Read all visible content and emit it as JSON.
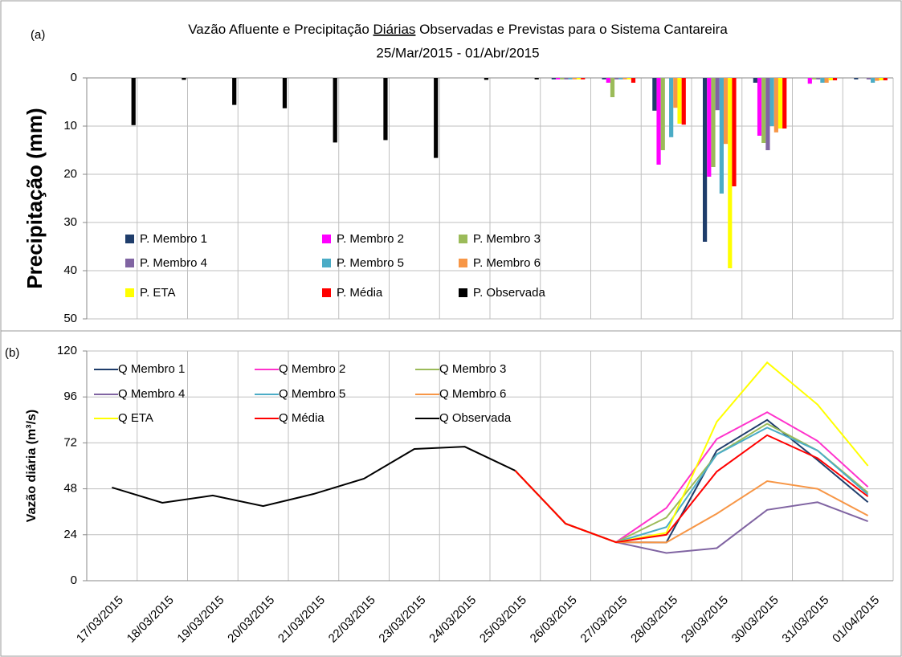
{
  "chart_data": [
    {
      "type": "bar",
      "title": [
        "Vazão Afluente e Precipitação",
        "Diárias",
        "Observadas e Previstas para o Sistema Cantareira"
      ],
      "subtitle": "25/Mar/2015 - 01/Abr/2015",
      "panel_label": "(a)",
      "y_label": "Precipitação (mm)",
      "ylim": [
        0,
        50
      ],
      "yticks": [
        0,
        10,
        20,
        30,
        40,
        50
      ],
      "y_inverted": true,
      "grid": true,
      "series": [
        {
          "name": "P. Membro 1",
          "color": "#1f3d6b",
          "values": [
            null,
            null,
            null,
            null,
            null,
            null,
            null,
            null,
            null,
            0.3,
            0.3,
            6.8,
            34,
            1,
            0,
            0.3
          ]
        },
        {
          "name": "P. Membro 2",
          "color": "#ff00ff",
          "values": [
            null,
            null,
            null,
            null,
            null,
            null,
            null,
            null,
            null,
            0.3,
            1,
            18,
            20.5,
            12,
            1.2,
            0
          ]
        },
        {
          "name": "P. Membro 3",
          "color": "#9bbb59",
          "values": [
            null,
            null,
            null,
            null,
            null,
            null,
            null,
            null,
            null,
            0.3,
            4,
            15,
            18.5,
            13.5,
            0.3,
            0
          ]
        },
        {
          "name": "P. Membro 4",
          "color": "#8064a2",
          "values": [
            null,
            null,
            null,
            null,
            null,
            null,
            null,
            null,
            null,
            0.3,
            0.3,
            0,
            6.7,
            15,
            0.3,
            0.3
          ]
        },
        {
          "name": "P. Membro 5",
          "color": "#4bacc6",
          "values": [
            null,
            null,
            null,
            null,
            null,
            null,
            null,
            null,
            null,
            0.3,
            0.3,
            12.3,
            24,
            10,
            1,
            1
          ]
        },
        {
          "name": "P. Membro 6",
          "color": "#f79646",
          "values": [
            null,
            null,
            null,
            null,
            null,
            null,
            null,
            null,
            null,
            0.3,
            0.3,
            6.2,
            13.7,
            11.3,
            1,
            0.6
          ]
        },
        {
          "name": "P. ETA",
          "color": "#ffff00",
          "values": [
            null,
            null,
            null,
            null,
            null,
            null,
            null,
            null,
            null,
            0.3,
            0.3,
            9.5,
            39.5,
            10.5,
            0.5,
            0.5
          ]
        },
        {
          "name": "P. Média",
          "color": "#ff0000",
          "values": [
            null,
            null,
            null,
            null,
            null,
            null,
            null,
            null,
            null,
            0.3,
            1,
            9.7,
            22.5,
            10.5,
            0.5,
            0.5
          ]
        },
        {
          "name": "P. Observada",
          "color": "#000000",
          "values": [
            9.8,
            0.4,
            5.6,
            6.3,
            13.4,
            12.9,
            16.6,
            0.4,
            0.3,
            null,
            null,
            null,
            null,
            null,
            null,
            null
          ]
        }
      ]
    },
    {
      "type": "line",
      "panel_label": "(b)",
      "y_label": "Vazão diária (m³/s)",
      "categories": [
        "17/03/2015",
        "18/03/2015",
        "19/03/2015",
        "20/03/2015",
        "21/03/2015",
        "22/03/2015",
        "23/03/2015",
        "24/03/2015",
        "25/03/2015",
        "26/03/2015",
        "27/03/2015",
        "28/03/2015",
        "29/03/2015",
        "30/03/2015",
        "31/03/2015",
        "01/04/2015"
      ],
      "ylim": [
        0,
        120
      ],
      "yticks": [
        0,
        24,
        48,
        72,
        96,
        120
      ],
      "grid": true,
      "series": [
        {
          "name": "Q Membro 1",
          "color": "#1f3d6b",
          "values": [
            null,
            null,
            null,
            null,
            null,
            null,
            null,
            null,
            57.5,
            29.8,
            20.1,
            20,
            68,
            84,
            63,
            41
          ]
        },
        {
          "name": "Q Membro 2",
          "color": "#ff33cc",
          "values": [
            null,
            null,
            null,
            null,
            null,
            null,
            null,
            null,
            57.5,
            29.8,
            20.1,
            38,
            74,
            88,
            73,
            49
          ]
        },
        {
          "name": "Q Membro 3",
          "color": "#9bbb59",
          "values": [
            null,
            null,
            null,
            null,
            null,
            null,
            null,
            null,
            57.5,
            29.8,
            20.1,
            33,
            66,
            82,
            68,
            46
          ]
        },
        {
          "name": "Q Membro 4",
          "color": "#8064a2",
          "values": [
            null,
            null,
            null,
            null,
            null,
            null,
            null,
            null,
            57.5,
            29.8,
            20.1,
            14.5,
            17,
            37,
            41,
            31
          ]
        },
        {
          "name": "Q Membro 5",
          "color": "#4bacc6",
          "values": [
            null,
            null,
            null,
            null,
            null,
            null,
            null,
            null,
            57.5,
            29.8,
            20.1,
            28,
            66,
            80,
            68,
            45
          ]
        },
        {
          "name": "Q Membro 6",
          "color": "#f79646",
          "values": [
            null,
            null,
            null,
            null,
            null,
            null,
            null,
            null,
            57.5,
            29.8,
            20.1,
            20,
            35,
            52,
            48,
            34
          ]
        },
        {
          "name": "Q ETA",
          "color": "#ffff00",
          "values": [
            null,
            null,
            null,
            null,
            null,
            null,
            null,
            null,
            57.5,
            29.8,
            20.1,
            25,
            83,
            114,
            92,
            60
          ]
        },
        {
          "name": "Q Média",
          "color": "#ff0000",
          "values": [
            null,
            null,
            null,
            null,
            null,
            null,
            null,
            null,
            57.5,
            29.8,
            20.1,
            24,
            57,
            76,
            64,
            44
          ]
        },
        {
          "name": "Q Observada",
          "color": "#000000",
          "values": [
            48.7,
            40.7,
            44.5,
            39,
            45.3,
            53.3,
            68.8,
            70,
            57.5,
            null,
            null,
            null,
            null,
            null,
            null,
            null
          ]
        }
      ]
    }
  ]
}
